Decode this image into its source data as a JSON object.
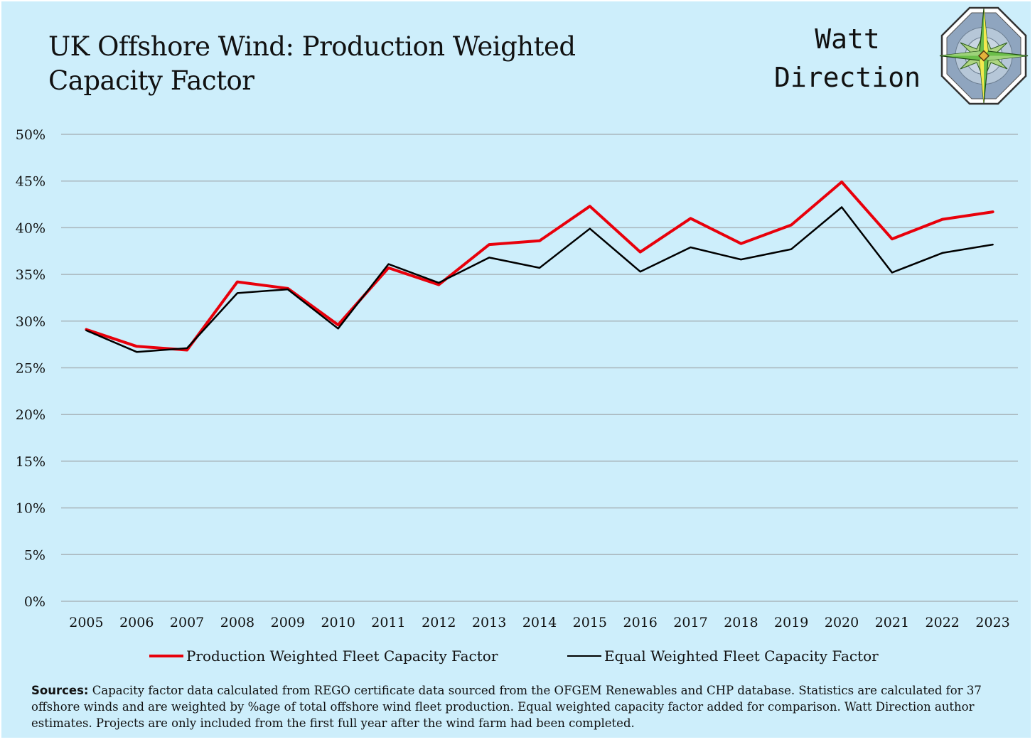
{
  "header": {
    "title": "UK Offshore Wind: Production Weighted Capacity Factor",
    "logo_line1": "Watt",
    "logo_line2": "Direction",
    "logo_icon": "compass-rose-icon"
  },
  "colors": {
    "background": "#cdeefb",
    "production_series": "#e8000b",
    "equal_series": "#000000",
    "gridline": "#a9b6bc"
  },
  "chart_data": {
    "type": "line",
    "title": "UK Offshore Wind: Production Weighted Capacity Factor",
    "xlabel": "",
    "ylabel": "",
    "categories": [
      "2005",
      "2006",
      "2007",
      "2008",
      "2009",
      "2010",
      "2011",
      "2012",
      "2013",
      "2014",
      "2015",
      "2016",
      "2017",
      "2018",
      "2019",
      "2020",
      "2021",
      "2022",
      "2023"
    ],
    "ylim": [
      0,
      50
    ],
    "yticks": [
      0,
      5,
      10,
      15,
      20,
      25,
      30,
      35,
      40,
      45,
      50
    ],
    "ytick_labels": [
      "0%",
      "5%",
      "10%",
      "15%",
      "20%",
      "25%",
      "30%",
      "35%",
      "40%",
      "45%",
      "50%"
    ],
    "grid": true,
    "legend_position": "bottom",
    "series": [
      {
        "name": "Production Weighted Fleet Capacity Factor",
        "color": "#e8000b",
        "values": [
          29.1,
          27.3,
          26.9,
          34.2,
          33.5,
          29.6,
          35.7,
          33.9,
          38.2,
          38.6,
          42.3,
          37.4,
          41.0,
          38.3,
          40.3,
          44.9,
          38.8,
          40.9,
          41.7
        ]
      },
      {
        "name": "Equal Weighted Fleet Capacity Factor",
        "color": "#000000",
        "values": [
          29.0,
          26.7,
          27.1,
          33.0,
          33.4,
          29.2,
          36.1,
          34.1,
          36.8,
          35.7,
          39.9,
          35.3,
          37.9,
          36.6,
          37.7,
          42.2,
          35.2,
          37.3,
          38.2
        ]
      }
    ]
  },
  "sources": {
    "label": "Sources:",
    "text": " Capacity factor data calculated from REGO certificate data sourced from the OFGEM Renewables and CHP database. Statistics are calculated for 37 offshore winds and are weighted by %age of total offshore wind fleet production.  Equal weighted capacity factor added for comparison.  Watt Direction author estimates. Projects are only included from the first full year after the wind farm had been completed."
  }
}
